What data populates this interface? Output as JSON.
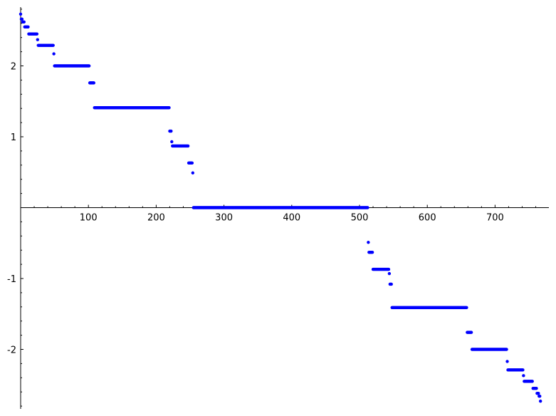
{
  "chart_data": {
    "type": "scatter",
    "title": "",
    "xlabel": "",
    "ylabel": "",
    "xlim": [
      0,
      780
    ],
    "ylim": [
      -2.82,
      2.82
    ],
    "grid": false,
    "legend": "none",
    "marker_color": "#0000ff",
    "axis_color": "#000000",
    "x_ticks": [
      {
        "value": 100,
        "label": "100"
      },
      {
        "value": 200,
        "label": "200"
      },
      {
        "value": 300,
        "label": "300"
      },
      {
        "value": 400,
        "label": "400"
      },
      {
        "value": 500,
        "label": "500"
      },
      {
        "value": 600,
        "label": "600"
      },
      {
        "value": 700,
        "label": "700"
      }
    ],
    "y_ticks": [
      {
        "value": 2,
        "label": "2"
      },
      {
        "value": 1,
        "label": "1"
      },
      {
        "value": -1,
        "label": "-1"
      },
      {
        "value": -2,
        "label": "-2"
      }
    ],
    "series": [
      {
        "segments": [
          {
            "x_start": 0,
            "x_end": 0,
            "y": 2.73
          },
          {
            "x_start": 1,
            "x_end": 2,
            "y": 2.66
          },
          {
            "x_start": 3,
            "x_end": 5,
            "y": 2.62
          },
          {
            "x_start": 6,
            "x_end": 11,
            "y": 2.55
          },
          {
            "x_start": 12,
            "x_end": 24,
            "y": 2.45
          },
          {
            "x_start": 25,
            "x_end": 25,
            "y": 2.37
          },
          {
            "x_start": 26,
            "x_end": 48,
            "y": 2.29
          },
          {
            "x_start": 49,
            "x_end": 49,
            "y": 2.17
          },
          {
            "x_start": 50,
            "x_end": 101,
            "y": 2.0
          },
          {
            "x_start": 102,
            "x_end": 108,
            "y": 1.76
          },
          {
            "x_start": 109,
            "x_end": 219,
            "y": 1.41
          },
          {
            "x_start": 220,
            "x_end": 222,
            "y": 1.08
          },
          {
            "x_start": 223,
            "x_end": 223,
            "y": 0.93
          },
          {
            "x_start": 224,
            "x_end": 247,
            "y": 0.87
          },
          {
            "x_start": 248,
            "x_end": 253,
            "y": 0.63
          },
          {
            "x_start": 254,
            "x_end": 254,
            "y": 0.49
          },
          {
            "x_start": 255,
            "x_end": 512,
            "y": 0.0
          },
          {
            "x_start": 513,
            "x_end": 513,
            "y": -0.49
          },
          {
            "x_start": 514,
            "x_end": 519,
            "y": -0.63
          },
          {
            "x_start": 520,
            "x_end": 543,
            "y": -0.87
          },
          {
            "x_start": 544,
            "x_end": 544,
            "y": -0.93
          },
          {
            "x_start": 545,
            "x_end": 547,
            "y": -1.08
          },
          {
            "x_start": 548,
            "x_end": 658,
            "y": -1.41
          },
          {
            "x_start": 659,
            "x_end": 665,
            "y": -1.76
          },
          {
            "x_start": 666,
            "x_end": 717,
            "y": -2.0
          },
          {
            "x_start": 718,
            "x_end": 718,
            "y": -2.17
          },
          {
            "x_start": 719,
            "x_end": 741,
            "y": -2.29
          },
          {
            "x_start": 742,
            "x_end": 742,
            "y": -2.37
          },
          {
            "x_start": 743,
            "x_end": 755,
            "y": -2.45
          },
          {
            "x_start": 756,
            "x_end": 761,
            "y": -2.55
          },
          {
            "x_start": 762,
            "x_end": 764,
            "y": -2.62
          },
          {
            "x_start": 765,
            "x_end": 766,
            "y": -2.66
          },
          {
            "x_start": 767,
            "x_end": 767,
            "y": -2.73
          }
        ]
      }
    ]
  }
}
